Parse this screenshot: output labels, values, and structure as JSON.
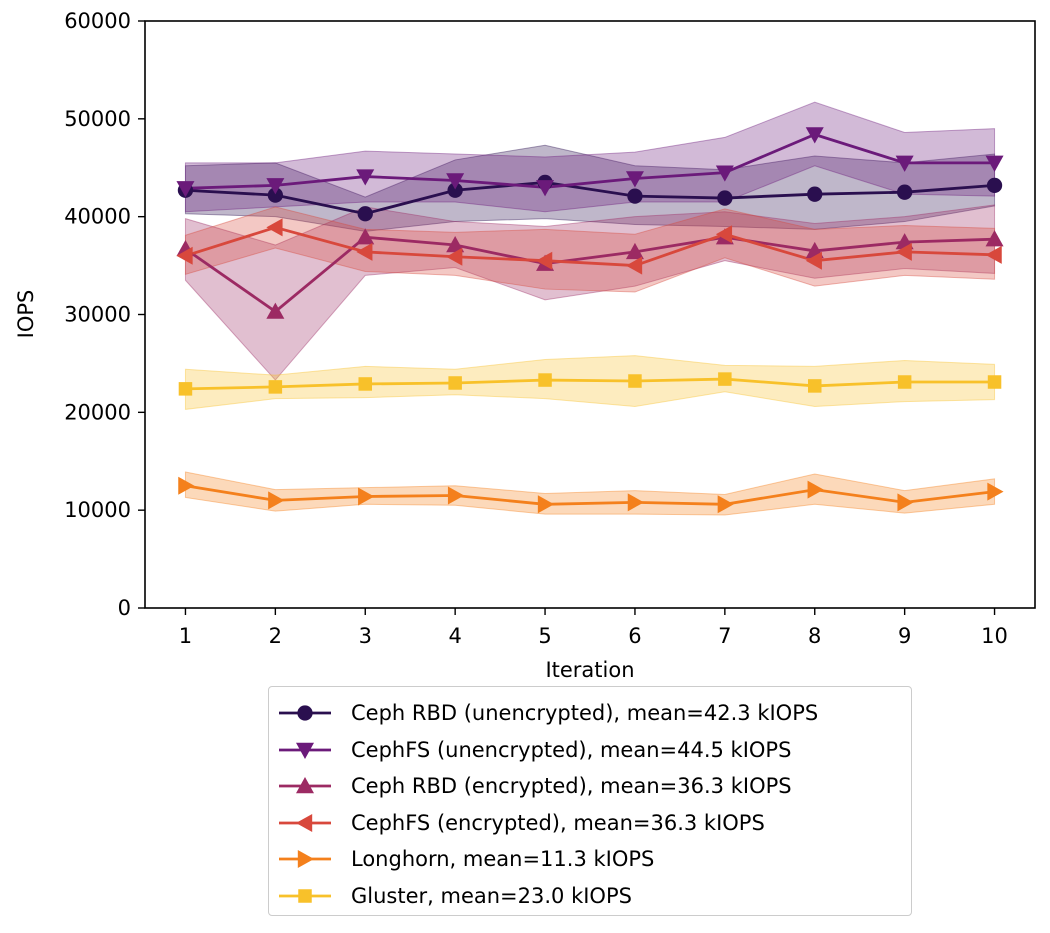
{
  "chart_data": {
    "type": "line",
    "title": "",
    "xlabel": "Iteration",
    "ylabel": "IOPS",
    "xlim": [
      0.55,
      10.45
    ],
    "ylim": [
      0,
      60000
    ],
    "x": [
      1,
      2,
      3,
      4,
      5,
      6,
      7,
      8,
      9,
      10
    ],
    "x_ticks": [
      "1",
      "2",
      "3",
      "4",
      "5",
      "6",
      "7",
      "8",
      "9",
      "10"
    ],
    "y_ticks": [
      "0",
      "10000",
      "20000",
      "30000",
      "40000",
      "50000",
      "60000"
    ],
    "y_tick_values": [
      0,
      10000,
      20000,
      30000,
      40000,
      50000,
      60000
    ],
    "grid": false,
    "legend_position": "below",
    "series": [
      {
        "name": "Ceph RBD (unencrypted), mean=42.3 kIOPS",
        "color": "#2a0f4f",
        "marker": "circle",
        "values": [
          42700,
          42200,
          40300,
          42700,
          43500,
          42100,
          41900,
          42300,
          42500,
          43200
        ],
        "band_lower": [
          40300,
          40000,
          38500,
          39500,
          39800,
          39200,
          39000,
          38700,
          39500,
          41100
        ],
        "band_upper": [
          45200,
          45500,
          42000,
          45800,
          47300,
          45200,
          44800,
          46200,
          45500,
          46400
        ]
      },
      {
        "name": "CephFS (unencrypted), mean=44.5 kIOPS",
        "color": "#6b1a7a",
        "marker": "triangle-down",
        "values": [
          42900,
          43200,
          44100,
          43700,
          43000,
          43900,
          44500,
          48400,
          45500,
          45500
        ],
        "band_lower": [
          40500,
          41000,
          41500,
          41500,
          40500,
          41500,
          41500,
          45200,
          42300,
          42100
        ],
        "band_upper": [
          45500,
          45500,
          46700,
          46400,
          46100,
          46600,
          48100,
          51700,
          48600,
          49000
        ]
      },
      {
        "name": "Ceph RBD (encrypted), mean=36.3 kIOPS",
        "color": "#9c2a63",
        "marker": "triangle-up",
        "values": [
          36700,
          30300,
          37900,
          37100,
          35200,
          36400,
          37900,
          36500,
          37400,
          37700
        ],
        "band_lower": [
          33500,
          23300,
          34000,
          34800,
          31500,
          32900,
          35500,
          33700,
          34700,
          34200
        ],
        "band_upper": [
          39800,
          37100,
          41000,
          39500,
          39000,
          40000,
          40500,
          39300,
          40000,
          41200
        ]
      },
      {
        "name": "CephFS (encrypted), mean=36.3 kIOPS",
        "color": "#d8483c",
        "marker": "triangle-left",
        "values": [
          36000,
          38900,
          36400,
          35900,
          35500,
          35000,
          38200,
          35500,
          36400,
          36100
        ],
        "band_lower": [
          34100,
          36800,
          34400,
          34000,
          32600,
          32300,
          35800,
          32900,
          34000,
          33600
        ],
        "band_upper": [
          38100,
          41000,
          38700,
          38400,
          38700,
          38200,
          40800,
          38700,
          39100,
          38800
        ]
      },
      {
        "name": "Longhorn, mean=11.3 kIOPS",
        "color": "#f4801c",
        "marker": "triangle-right",
        "values": [
          12500,
          11000,
          11400,
          11500,
          10600,
          10800,
          10600,
          12100,
          10800,
          11900
        ],
        "band_lower": [
          11300,
          9900,
          10600,
          10500,
          9600,
          9600,
          9500,
          10600,
          9700,
          10600
        ],
        "band_upper": [
          13900,
          12100,
          12300,
          12500,
          11700,
          12000,
          11600,
          13700,
          12000,
          13200
        ]
      },
      {
        "name": "Gluster, mean=23.0 kIOPS",
        "color": "#f8c12a",
        "marker": "square",
        "values": [
          22400,
          22600,
          22900,
          23000,
          23300,
          23200,
          23400,
          22700,
          23100,
          23100
        ],
        "band_lower": [
          20300,
          21400,
          21500,
          21800,
          21400,
          20600,
          22100,
          20600,
          21100,
          21300
        ],
        "band_upper": [
          24400,
          23800,
          24700,
          24400,
          25400,
          25800,
          24800,
          24700,
          25300,
          24900
        ]
      }
    ]
  }
}
